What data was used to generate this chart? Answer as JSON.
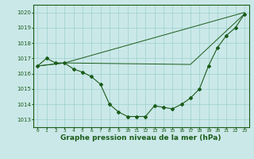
{
  "bg_color": "#cbe8e8",
  "grid_color": "#9dcfcf",
  "line_color": "#1a5c1a",
  "xlabel": "Graphe pression niveau de la mer (hPa)",
  "xlabel_fontsize": 6.5,
  "ylabel_ticks": [
    1013,
    1014,
    1015,
    1016,
    1017,
    1018,
    1019,
    1020
  ],
  "xlim": [
    -0.5,
    23.5
  ],
  "ylim": [
    1012.5,
    1020.5
  ],
  "hours": [
    0,
    1,
    2,
    3,
    4,
    5,
    6,
    7,
    8,
    9,
    10,
    11,
    12,
    13,
    14,
    15,
    16,
    17,
    18,
    19,
    20,
    21,
    22,
    23
  ],
  "line1": [
    1016.5,
    1017.0,
    1016.7,
    1016.7,
    1016.3,
    1016.1,
    1015.8,
    1015.3,
    1014.0,
    1013.5,
    1013.2,
    1013.2,
    1013.2,
    1013.9,
    1013.8,
    1013.7,
    1014.0,
    1014.4,
    1015.0,
    1016.5,
    1017.7,
    1018.5,
    1019.0,
    1019.9
  ],
  "line2_x": [
    0,
    3,
    23
  ],
  "line2_y": [
    1016.5,
    1016.7,
    1019.9
  ],
  "line3_x": [
    0,
    3,
    17,
    23
  ],
  "line3_y": [
    1016.5,
    1016.7,
    1016.6,
    1019.9
  ],
  "line4_x": [
    0,
    3,
    23
  ],
  "line4_y": [
    1016.5,
    1016.7,
    1020.0
  ]
}
